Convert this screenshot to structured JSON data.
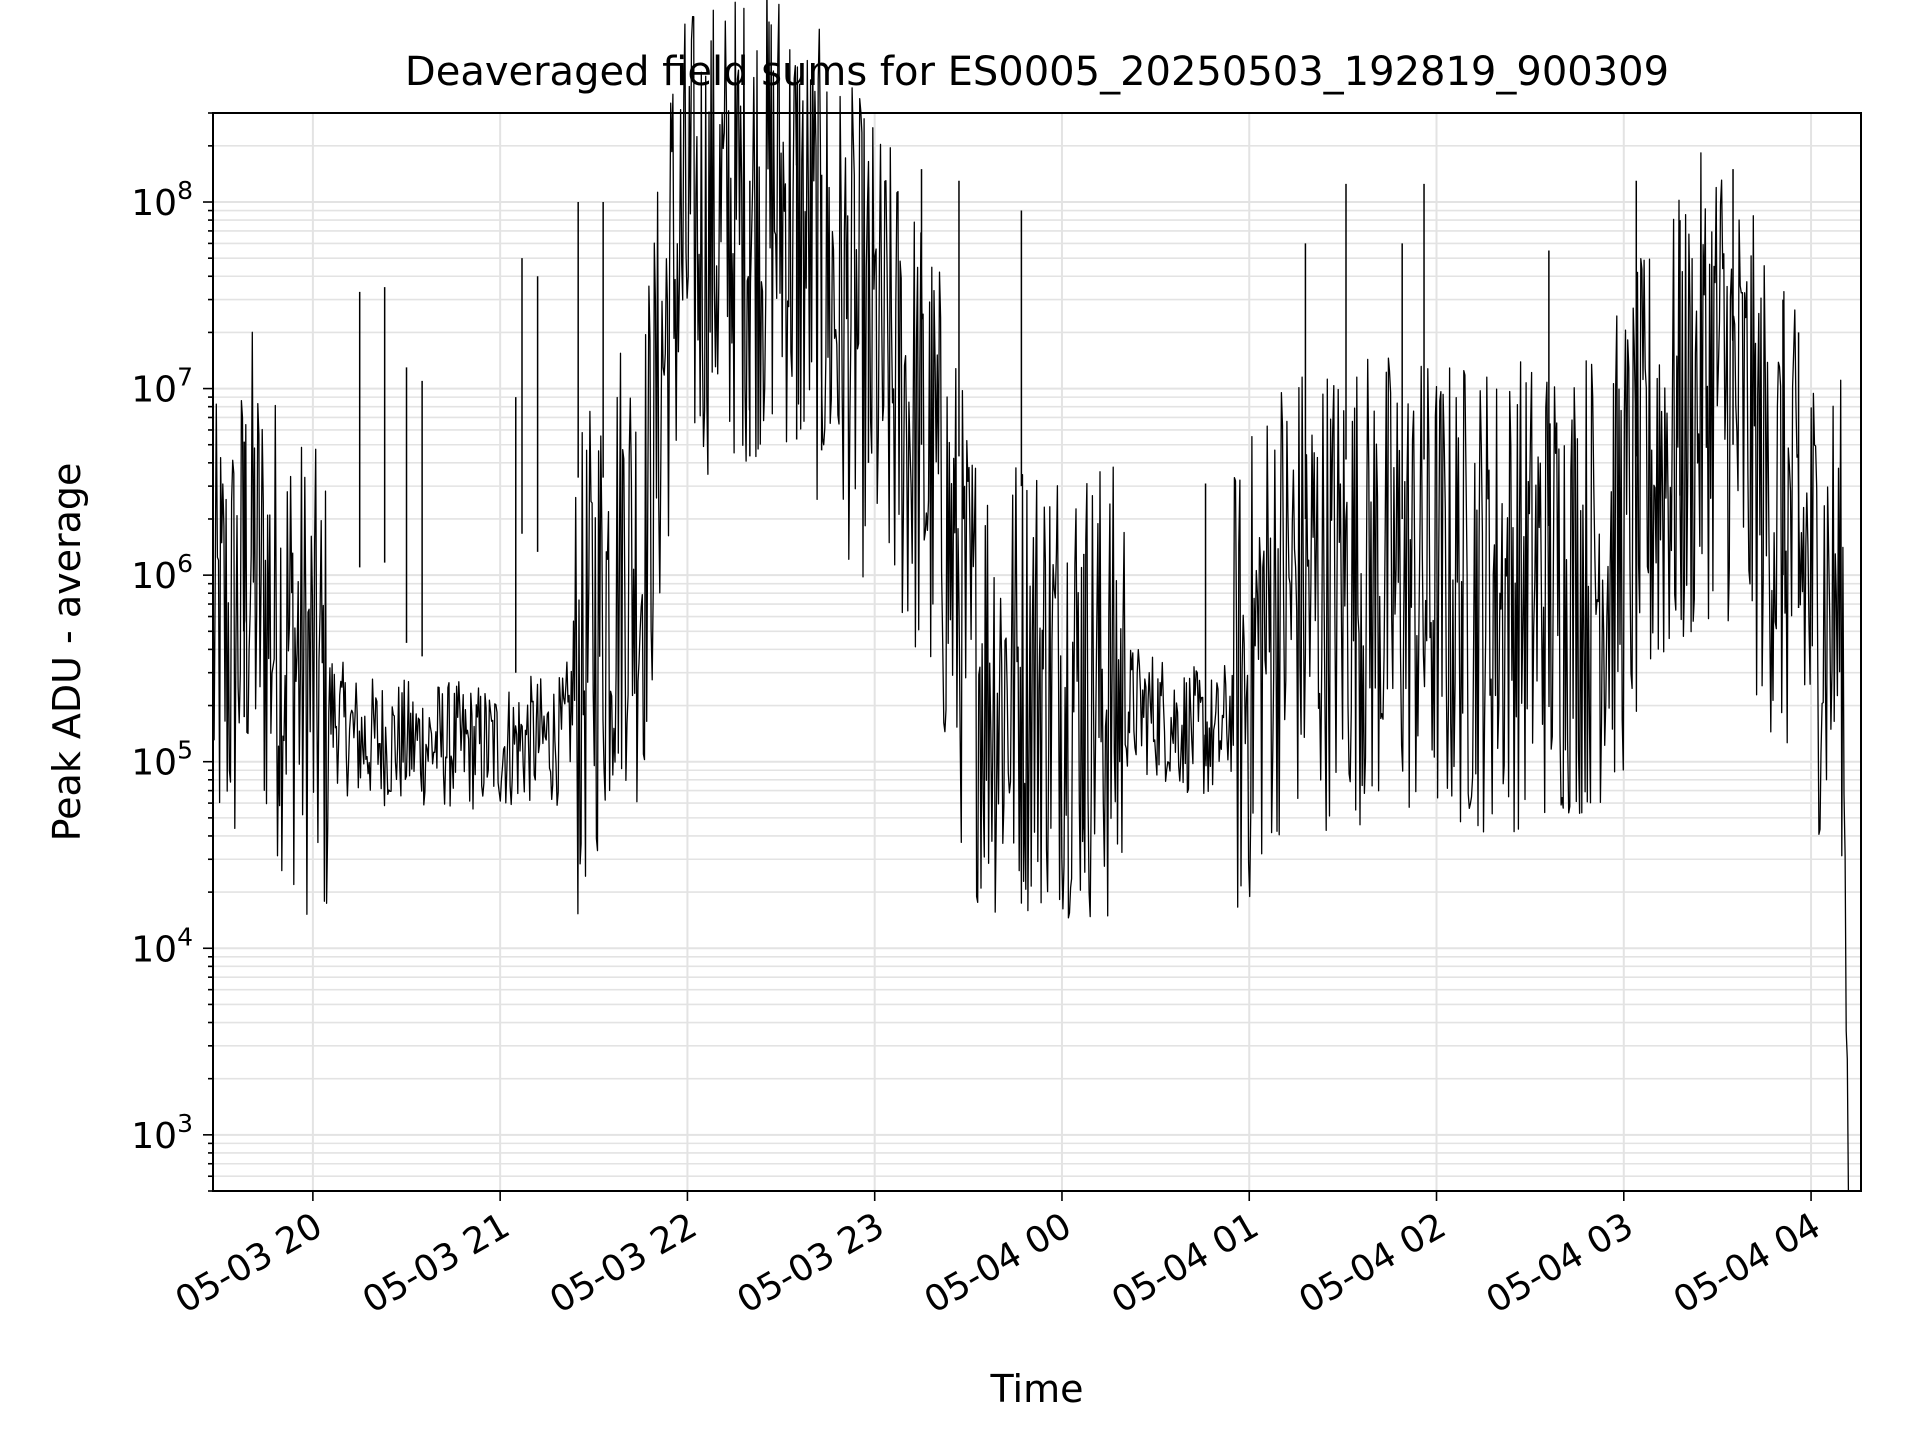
{
  "chart_data": {
    "type": "line",
    "title": "Deaveraged field sums for ES0005_20250503_192819_900309",
    "xlabel": "Time",
    "ylabel": "Peak ADU - average",
    "yscale": "log",
    "ylim": [
      500,
      300000000
    ],
    "xlim": [
      "2025-05-03 19:28",
      "2025-05-04 04:16"
    ],
    "grid": true,
    "x_ticks": [
      {
        "value": "2025-05-03 20:00",
        "label": "05-03 20"
      },
      {
        "value": "2025-05-03 21:00",
        "label": "05-03 21"
      },
      {
        "value": "2025-05-03 22:00",
        "label": "05-03 22"
      },
      {
        "value": "2025-05-03 23:00",
        "label": "05-03 23"
      },
      {
        "value": "2025-05-04 00:00",
        "label": "05-04 00"
      },
      {
        "value": "2025-05-04 01:00",
        "label": "05-04 01"
      },
      {
        "value": "2025-05-04 02:00",
        "label": "05-04 02"
      },
      {
        "value": "2025-05-04 03:00",
        "label": "05-04 03"
      },
      {
        "value": "2025-05-04 04:00",
        "label": "05-04 04"
      }
    ],
    "y_ticks": [
      {
        "value": 1000,
        "label_base": "10",
        "label_exp": "3"
      },
      {
        "value": 10000,
        "label_base": "10",
        "label_exp": "4"
      },
      {
        "value": 100000,
        "label_base": "10",
        "label_exp": "5"
      },
      {
        "value": 1000000,
        "label_base": "10",
        "label_exp": "6"
      },
      {
        "value": 10000000,
        "label_base": "10",
        "label_exp": "7"
      },
      {
        "value": 100000000,
        "label_base": "10",
        "label_exp": "8"
      }
    ],
    "line_color": "#000000",
    "series": [
      {
        "x": [
          "2025-05-03 19:28",
          "2025-05-03 19:35",
          "2025-05-03 19:40",
          "2025-05-03 19:43",
          "2025-05-03 19:47",
          "2025-05-03 19:52",
          "2025-05-03 19:58",
          "2025-05-03 20:05",
          "2025-05-03 20:10",
          "2025-05-03 20:15",
          "2025-05-03 20:20",
          "2025-05-03 20:30",
          "2025-05-03 20:40",
          "2025-05-03 20:50",
          "2025-05-03 21:00",
          "2025-05-03 21:10",
          "2025-05-03 21:20",
          "2025-05-03 21:30",
          "2025-05-03 21:40",
          "2025-05-03 21:45",
          "2025-05-03 21:50",
          "2025-05-03 21:55",
          "2025-05-03 22:00",
          "2025-05-03 22:10",
          "2025-05-03 22:20",
          "2025-05-03 22:30",
          "2025-05-03 22:40",
          "2025-05-03 22:50",
          "2025-05-03 23:00",
          "2025-05-03 23:10",
          "2025-05-03 23:20",
          "2025-05-03 23:30",
          "2025-05-03 23:40",
          "2025-05-03 23:50",
          "2025-05-04 00:00",
          "2025-05-04 00:10",
          "2025-05-04 00:20",
          "2025-05-04 00:30",
          "2025-05-04 00:40",
          "2025-05-04 00:50",
          "2025-05-04 01:00",
          "2025-05-04 01:10",
          "2025-05-04 01:20",
          "2025-05-04 01:30",
          "2025-05-04 01:40",
          "2025-05-04 01:50",
          "2025-05-04 02:00",
          "2025-05-04 02:10",
          "2025-05-04 02:20",
          "2025-05-04 02:30",
          "2025-05-04 02:40",
          "2025-05-04 02:50",
          "2025-05-04 03:00",
          "2025-05-04 03:10",
          "2025-05-04 03:20",
          "2025-05-04 03:30",
          "2025-05-04 03:40",
          "2025-05-04 03:50",
          "2025-05-04 04:00",
          "2025-05-04 04:05",
          "2025-05-04 04:10",
          "2025-05-04 04:12"
        ],
        "y": [
          420000,
          450000,
          1300000,
          800000,
          600000,
          450000,
          280000,
          200000,
          150000,
          130000,
          130000,
          125000,
          125000,
          120000,
          120000,
          130000,
          130000,
          500000,
          1500000,
          1000000,
          6000000,
          40000000,
          60000000,
          70000000,
          80000000,
          100000000,
          50000000,
          25000000,
          15000000,
          8000000,
          3000000,
          400000,
          250000,
          300000,
          300000,
          250000,
          200000,
          180000,
          150000,
          130000,
          300000,
          800000,
          800000,
          900000,
          900000,
          850000,
          800000,
          800000,
          800000,
          850000,
          900000,
          1000000,
          1500000,
          4000000,
          6000000,
          15000000,
          5000000,
          2000000,
          900000,
          700000,
          600000,
          500
        ]
      }
    ],
    "spikes": [
      {
        "x": "2025-05-03 19:38",
        "y": 5200000
      },
      {
        "x": "2025-05-03 20:15",
        "y": 33000000
      },
      {
        "x": "2025-05-03 20:23",
        "y": 35000000
      },
      {
        "x": "2025-05-03 20:30",
        "y": 13000000
      },
      {
        "x": "2025-05-03 20:35",
        "y": 11000000
      },
      {
        "x": "2025-05-03 21:05",
        "y": 9000000
      },
      {
        "x": "2025-05-03 21:07",
        "y": 50000000
      },
      {
        "x": "2025-05-03 21:12",
        "y": 40000000
      },
      {
        "x": "2025-05-03 21:25",
        "y": 100000000
      },
      {
        "x": "2025-05-03 21:33",
        "y": 100000000
      },
      {
        "x": "2025-05-03 22:20",
        "y": 130000000
      },
      {
        "x": "2025-05-03 22:35",
        "y": 160000000
      },
      {
        "x": "2025-05-03 22:43",
        "y": 140000000
      },
      {
        "x": "2025-05-03 22:58",
        "y": 120000000
      },
      {
        "x": "2025-05-03 23:15",
        "y": 150000000
      },
      {
        "x": "2025-05-03 23:27",
        "y": 130000000
      },
      {
        "x": "2025-05-03 23:47",
        "y": 90000000
      },
      {
        "x": "2025-05-04 00:07",
        "y": 1300000
      },
      {
        "x": "2025-05-04 00:46",
        "y": 3100000
      },
      {
        "x": "2025-05-04 01:18",
        "y": 60000000
      },
      {
        "x": "2025-05-04 01:31",
        "y": 125000000
      },
      {
        "x": "2025-05-04 01:49",
        "y": 60000000
      },
      {
        "x": "2025-05-04 01:56",
        "y": 125000000
      },
      {
        "x": "2025-05-04 02:36",
        "y": 55000000
      },
      {
        "x": "2025-05-04 03:04",
        "y": 130000000
      },
      {
        "x": "2025-05-04 03:18",
        "y": 80000000
      },
      {
        "x": "2025-05-04 03:35",
        "y": 150000000
      },
      {
        "x": "2025-05-04 03:51",
        "y": 30000000
      },
      {
        "x": "2025-05-04 03:56",
        "y": 20000000
      }
    ]
  }
}
